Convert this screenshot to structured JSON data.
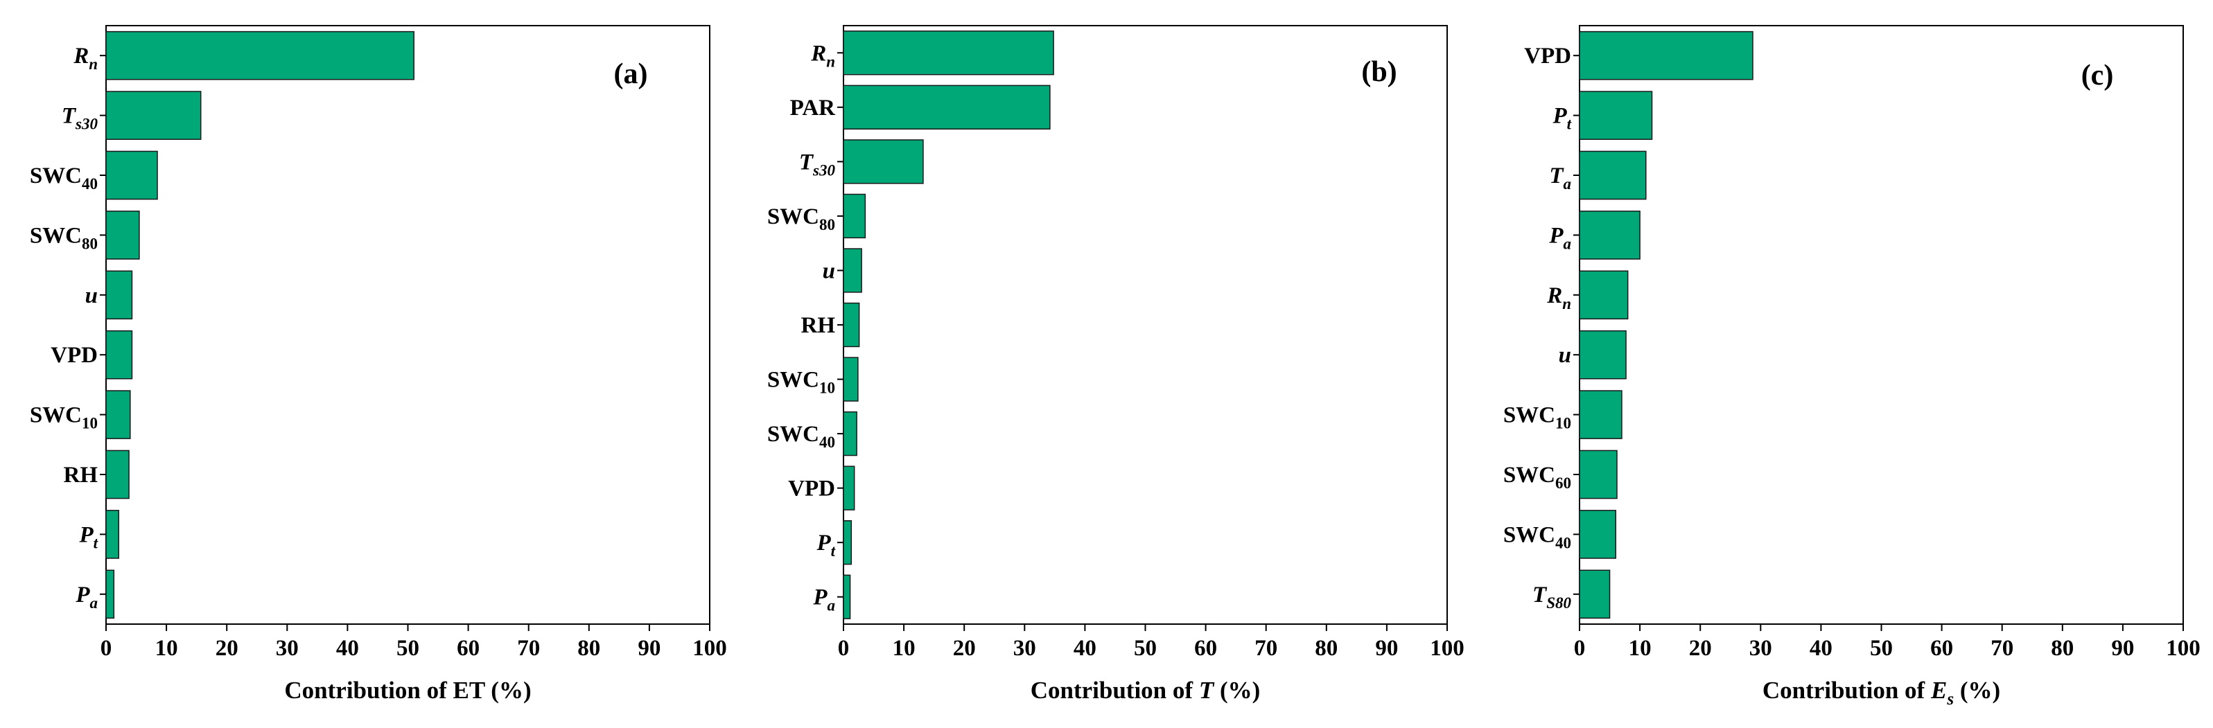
{
  "colors": {
    "bar_fill": "#00a878",
    "bar_stroke": "#1a1a1a",
    "axis": "#000000",
    "background": "#ffffff"
  },
  "chart_data": [
    {
      "type": "bar",
      "orientation": "horizontal",
      "panel_label": "(a)",
      "xlabel": "Contribution of ET (%)",
      "xlim": [
        0,
        100
      ],
      "xticks": [
        0,
        10,
        20,
        30,
        40,
        50,
        60,
        70,
        80,
        90,
        100
      ],
      "categories": [
        {
          "base": "R",
          "sub": "n",
          "italic": true
        },
        {
          "base": "T",
          "sub": "s30",
          "italic": true
        },
        {
          "base": "SWC",
          "sub": "40",
          "italic": false
        },
        {
          "base": "SWC",
          "sub": "80",
          "italic": false
        },
        {
          "base": "u",
          "sub": "",
          "italic": true
        },
        {
          "base": "VPD",
          "sub": "",
          "italic": false
        },
        {
          "base": "SWC",
          "sub": "10",
          "italic": false
        },
        {
          "base": "RH",
          "sub": "",
          "italic": false
        },
        {
          "base": "P",
          "sub": "t",
          "italic": true
        },
        {
          "base": "P",
          "sub": "a",
          "italic": true
        }
      ],
      "values": [
        51.0,
        15.7,
        8.5,
        5.5,
        4.3,
        4.3,
        4.0,
        3.8,
        2.1,
        1.3
      ]
    },
    {
      "type": "bar",
      "orientation": "horizontal",
      "panel_label": "(b)",
      "xlabel": "Contribution of T (%)",
      "xlabel_parts": [
        {
          "text": "Contribution of ",
          "italic": false,
          "sub": false
        },
        {
          "text": "T",
          "italic": true,
          "sub": false
        },
        {
          "text": " (%)",
          "italic": false,
          "sub": false
        }
      ],
      "xlim": [
        0,
        100
      ],
      "xticks": [
        0,
        10,
        20,
        30,
        40,
        50,
        60,
        70,
        80,
        90,
        100
      ],
      "categories": [
        {
          "base": "R",
          "sub": "n",
          "italic": true
        },
        {
          "base": "PAR",
          "sub": "",
          "italic": false
        },
        {
          "base": "T",
          "sub": "s30",
          "italic": true
        },
        {
          "base": "SWC",
          "sub": "80",
          "italic": false
        },
        {
          "base": "u",
          "sub": "",
          "italic": true
        },
        {
          "base": "RH",
          "sub": "",
          "italic": false
        },
        {
          "base": "SWC",
          "sub": "10",
          "italic": false
        },
        {
          "base": "SWC",
          "sub": "40",
          "italic": false
        },
        {
          "base": "VPD",
          "sub": "",
          "italic": false
        },
        {
          "base": "P",
          "sub": "t",
          "italic": true
        },
        {
          "base": "P",
          "sub": "a",
          "italic": true
        }
      ],
      "values": [
        34.8,
        34.2,
        13.2,
        3.6,
        3.0,
        2.6,
        2.4,
        2.2,
        1.8,
        1.3,
        1.1
      ]
    },
    {
      "type": "bar",
      "orientation": "horizontal",
      "panel_label": "(c)",
      "xlabel": "Contribution of Es (%)",
      "xlabel_parts": [
        {
          "text": "Contribution of ",
          "italic": false,
          "sub": false
        },
        {
          "text": "E",
          "italic": true,
          "sub": false
        },
        {
          "text": "s",
          "italic": true,
          "sub": true
        },
        {
          "text": " (%)",
          "italic": false,
          "sub": false
        }
      ],
      "xlim": [
        0,
        100
      ],
      "xticks": [
        0,
        10,
        20,
        30,
        40,
        50,
        60,
        70,
        80,
        90,
        100
      ],
      "categories": [
        {
          "base": "VPD",
          "sub": "",
          "italic": false
        },
        {
          "base": "P",
          "sub": "t",
          "italic": true
        },
        {
          "base": "T",
          "sub": "a",
          "italic": true
        },
        {
          "base": "P",
          "sub": "a",
          "italic": true
        },
        {
          "base": "R",
          "sub": "n",
          "italic": true
        },
        {
          "base": "u",
          "sub": "",
          "italic": true
        },
        {
          "base": "SWC",
          "sub": "10",
          "italic": false
        },
        {
          "base": "SWC",
          "sub": "60",
          "italic": false
        },
        {
          "base": "SWC",
          "sub": "40",
          "italic": false
        },
        {
          "base": "T",
          "sub": "S80",
          "italic": true
        }
      ],
      "values": [
        28.7,
        12.0,
        11.0,
        10.0,
        8.0,
        7.7,
        7.0,
        6.2,
        6.0,
        5.0
      ]
    }
  ]
}
